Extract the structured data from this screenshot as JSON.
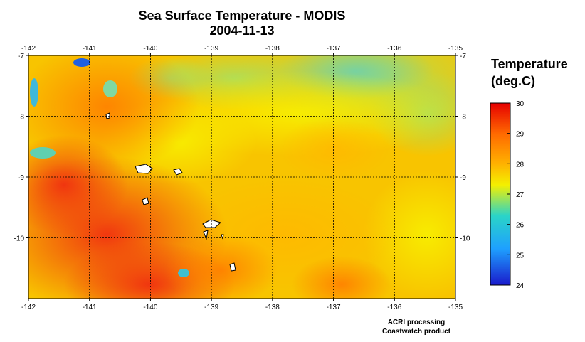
{
  "title": "Sea Surface Temperature - MODIS",
  "date": "2004-11-13",
  "map": {
    "lon_range": [
      -142,
      -135
    ],
    "lat_range": [
      -11,
      -7
    ],
    "lon_ticks": [
      "-142",
      "-141",
      "-140",
      "-139",
      "-138",
      "-137",
      "-136",
      "-135"
    ],
    "lat_ticks": [
      "-7",
      "-8",
      "-9",
      "-10"
    ],
    "gridlines": true,
    "land_color": "#ffffff"
  },
  "colorbar": {
    "title_line1": "Temperature",
    "title_line2": "(deg.C)",
    "ticks": [
      "30",
      "29",
      "28",
      "27",
      "26",
      "25",
      "24"
    ],
    "min": 24,
    "max": 30,
    "colors": [
      "#1a1acc",
      "#1ea0ff",
      "#2ad4c8",
      "#f4f000",
      "#ffb000",
      "#ff6a00",
      "#e60000"
    ]
  },
  "credits": {
    "line1": "ACRI processing",
    "line2": "Coastwatch product"
  }
}
